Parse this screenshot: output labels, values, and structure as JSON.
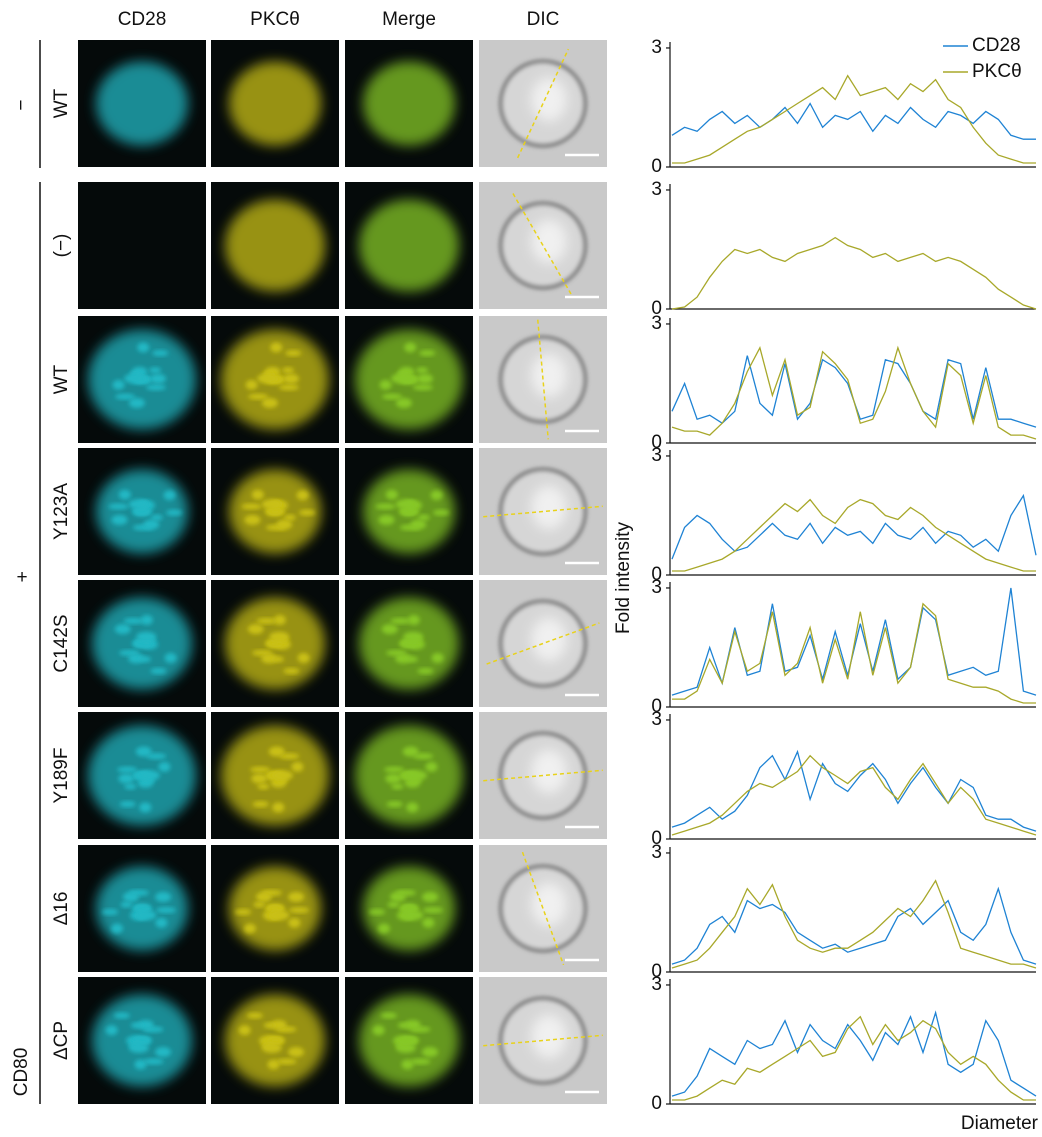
{
  "column_headers": [
    "CD28",
    "PKCθ",
    "Merge",
    "DIC"
  ],
  "row_labels": [
    "WT",
    "(−)",
    "WT",
    "Y123A",
    "C142S",
    "Y189F",
    "Δ16",
    "ΔCP"
  ],
  "group_labels": {
    "minus": "−",
    "plus": "+",
    "ligand": "CD80"
  },
  "y_label": "Fold intensity",
  "x_label": "Diameter",
  "chart_data": [
    {
      "type": "line",
      "ylim": [
        0,
        3.1
      ],
      "yticks": [
        0,
        3
      ],
      "legend": "upper right",
      "series": [
        {
          "name": "CD28",
          "color": "#1f83d4",
          "values": [
            0.8,
            1.0,
            0.9,
            1.2,
            1.4,
            1.1,
            1.3,
            1.0,
            1.2,
            1.5,
            1.1,
            1.6,
            1.0,
            1.3,
            1.2,
            1.4,
            0.9,
            1.3,
            1.1,
            1.5,
            1.2,
            1.0,
            1.4,
            1.3,
            1.1,
            1.4,
            1.2,
            0.8,
            0.7,
            0.7
          ]
        },
        {
          "name": "PKCθ",
          "color": "#a8a82a",
          "values": [
            0.1,
            0.1,
            0.2,
            0.3,
            0.5,
            0.7,
            0.9,
            1.0,
            1.2,
            1.4,
            1.6,
            1.8,
            2.0,
            1.7,
            2.3,
            1.8,
            1.9,
            2.0,
            1.7,
            2.1,
            1.9,
            2.2,
            1.7,
            1.5,
            1.0,
            0.6,
            0.3,
            0.2,
            0.1,
            0.1
          ]
        }
      ]
    },
    {
      "type": "line",
      "ylim": [
        0,
        3.1
      ],
      "yticks": [
        0,
        3
      ],
      "series": [
        {
          "color": "#a8a82a",
          "values": [
            0,
            0.05,
            0.3,
            0.8,
            1.2,
            1.5,
            1.4,
            1.5,
            1.3,
            1.2,
            1.4,
            1.5,
            1.6,
            1.8,
            1.6,
            1.5,
            1.3,
            1.4,
            1.2,
            1.3,
            1.4,
            1.2,
            1.3,
            1.2,
            1.0,
            0.8,
            0.5,
            0.3,
            0.1,
            0
          ]
        }
      ]
    },
    {
      "type": "line",
      "ylim": [
        0,
        3.1
      ],
      "yticks": [
        0,
        3
      ],
      "series": [
        {
          "color": "#1f83d4",
          "values": [
            0.8,
            1.5,
            0.6,
            0.7,
            0.5,
            0.8,
            2.2,
            1.0,
            0.7,
            2.0,
            0.6,
            1.0,
            2.1,
            1.9,
            1.5,
            0.6,
            0.7,
            2.1,
            2.0,
            1.5,
            0.8,
            0.6,
            2.1,
            2.0,
            0.6,
            1.9,
            0.6,
            0.6,
            0.5,
            0.4
          ]
        },
        {
          "color": "#a8a82a",
          "values": [
            0.4,
            0.3,
            0.3,
            0.2,
            0.5,
            1.0,
            1.8,
            2.4,
            1.2,
            2.1,
            0.7,
            0.9,
            2.3,
            2.0,
            1.6,
            0.5,
            0.6,
            1.3,
            2.4,
            1.5,
            0.8,
            0.4,
            2.0,
            1.7,
            0.5,
            1.7,
            0.4,
            0.2,
            0.2,
            0.1
          ]
        }
      ]
    },
    {
      "type": "line",
      "ylim": [
        0,
        3.1
      ],
      "yticks": [
        0,
        3
      ],
      "series": [
        {
          "color": "#1f83d4",
          "values": [
            0.4,
            1.2,
            1.5,
            1.3,
            0.9,
            0.6,
            0.7,
            1.0,
            1.3,
            1.0,
            0.9,
            1.3,
            0.8,
            1.2,
            1.0,
            1.1,
            0.8,
            1.3,
            1.0,
            0.9,
            1.2,
            0.8,
            1.1,
            1.0,
            0.7,
            0.9,
            0.6,
            1.5,
            2.0,
            0.5
          ]
        },
        {
          "color": "#a8a82a",
          "values": [
            0.1,
            0.1,
            0.2,
            0.3,
            0.4,
            0.6,
            0.9,
            1.2,
            1.5,
            1.8,
            1.6,
            1.9,
            1.5,
            1.3,
            1.7,
            1.9,
            1.8,
            1.5,
            1.4,
            1.7,
            1.5,
            1.2,
            1.0,
            0.8,
            0.6,
            0.4,
            0.3,
            0.2,
            0.1,
            0.1
          ]
        }
      ]
    },
    {
      "type": "line",
      "ylim": [
        0,
        3.1
      ],
      "yticks": [
        0,
        3
      ],
      "series": [
        {
          "color": "#1f83d4",
          "values": [
            0.3,
            0.4,
            0.5,
            1.5,
            0.6,
            2.0,
            0.8,
            0.9,
            2.6,
            0.9,
            1.0,
            1.8,
            0.7,
            1.9,
            0.8,
            2.1,
            0.9,
            2.2,
            0.7,
            1.0,
            2.5,
            2.2,
            0.8,
            0.9,
            1.0,
            0.8,
            0.9,
            3.0,
            0.4,
            0.3
          ]
        },
        {
          "color": "#a8a82a",
          "values": [
            0.2,
            0.2,
            0.4,
            1.2,
            0.6,
            1.9,
            0.9,
            1.1,
            2.4,
            0.8,
            1.1,
            2.0,
            0.6,
            1.7,
            0.7,
            2.4,
            0.8,
            2.0,
            0.6,
            1.0,
            2.6,
            2.3,
            0.7,
            0.6,
            0.5,
            0.5,
            0.4,
            0.2,
            0.1,
            0.1
          ]
        }
      ]
    },
    {
      "type": "line",
      "ylim": [
        0,
        3.1
      ],
      "yticks": [
        0,
        3
      ],
      "series": [
        {
          "color": "#1f83d4",
          "values": [
            0.3,
            0.4,
            0.6,
            0.8,
            0.5,
            0.7,
            1.1,
            1.8,
            2.1,
            1.5,
            2.2,
            1.0,
            1.9,
            1.4,
            1.2,
            1.6,
            1.9,
            1.5,
            0.9,
            1.4,
            1.8,
            1.3,
            0.9,
            1.5,
            1.3,
            0.6,
            0.5,
            0.5,
            0.3,
            0.2
          ]
        },
        {
          "color": "#a8a82a",
          "values": [
            0.1,
            0.2,
            0.3,
            0.4,
            0.6,
            0.9,
            1.2,
            1.4,
            1.3,
            1.5,
            1.7,
            2.1,
            1.8,
            1.6,
            1.4,
            1.7,
            1.8,
            1.3,
            1.0,
            1.5,
            1.9,
            1.4,
            0.9,
            1.3,
            1.0,
            0.5,
            0.4,
            0.3,
            0.2,
            0.1
          ]
        }
      ]
    },
    {
      "type": "line",
      "ylim": [
        0,
        3.1
      ],
      "yticks": [
        0,
        3
      ],
      "series": [
        {
          "color": "#1f83d4",
          "values": [
            0.2,
            0.3,
            0.6,
            1.2,
            1.4,
            1.0,
            1.8,
            1.6,
            1.7,
            1.5,
            1.0,
            0.8,
            0.6,
            0.7,
            0.5,
            0.6,
            0.7,
            0.8,
            1.4,
            1.6,
            1.2,
            1.5,
            1.8,
            1.0,
            0.8,
            1.2,
            2.1,
            1.0,
            0.3,
            0.2
          ]
        },
        {
          "color": "#a8a82a",
          "values": [
            0.1,
            0.2,
            0.3,
            0.6,
            1.0,
            1.4,
            2.1,
            1.7,
            2.2,
            1.4,
            0.8,
            0.6,
            0.5,
            0.6,
            0.6,
            0.8,
            1.0,
            1.3,
            1.6,
            1.4,
            1.8,
            2.3,
            1.5,
            0.6,
            0.5,
            0.4,
            0.3,
            0.2,
            0.2,
            0.1
          ]
        }
      ]
    },
    {
      "type": "line",
      "ylim": [
        0,
        3.1
      ],
      "yticks": [
        0,
        3
      ],
      "series": [
        {
          "color": "#1f83d4",
          "values": [
            0.2,
            0.3,
            0.7,
            1.4,
            1.2,
            1.0,
            1.6,
            1.4,
            1.5,
            2.1,
            1.3,
            2.0,
            1.6,
            1.4,
            2.0,
            1.6,
            1.1,
            1.8,
            1.5,
            2.2,
            1.3,
            2.3,
            1.0,
            0.8,
            1.0,
            2.1,
            1.6,
            0.6,
            0.4,
            0.2
          ]
        },
        {
          "color": "#a8a82a",
          "values": [
            0.1,
            0.1,
            0.2,
            0.4,
            0.6,
            0.5,
            0.9,
            0.8,
            1.0,
            1.2,
            1.4,
            1.6,
            1.2,
            1.3,
            1.9,
            2.2,
            1.5,
            2.0,
            1.6,
            1.8,
            2.1,
            1.9,
            1.3,
            1.0,
            1.2,
            1.0,
            0.6,
            0.3,
            0.1,
            0.1
          ]
        }
      ]
    }
  ]
}
